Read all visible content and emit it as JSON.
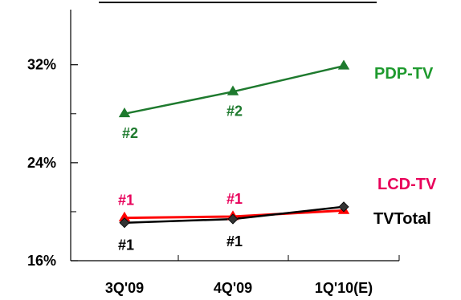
{
  "chart_data": {
    "type": "line",
    "categories": [
      "3Q'09",
      "4Q'09",
      "1Q'10(E)"
    ],
    "y_ticks": [
      "16%",
      "24%",
      "32%"
    ],
    "ylim": [
      16,
      36.5
    ],
    "series": [
      {
        "name": "PDP-TV",
        "values": [
          28.0,
          29.8,
          31.9
        ],
        "color": "#1e7a2e",
        "marker": "triangle",
        "ranks": [
          "#2",
          "#2",
          ""
        ]
      },
      {
        "name": "LCD-TV",
        "values": [
          19.5,
          19.6,
          20.1
        ],
        "color": "#ff0000",
        "marker": "triangle",
        "ranks": [
          "#1",
          "#1",
          ""
        ]
      },
      {
        "name": "TVTotal",
        "values": [
          19.1,
          19.4,
          20.4
        ],
        "color": "#000000",
        "marker": "diamond",
        "ranks": [
          "#1",
          "#1",
          ""
        ]
      }
    ],
    "rank_label_colors": {
      "PDP-TV": "#1e7a2e",
      "LCD-TV": "#e8005a",
      "TVTotal": "#000000"
    },
    "series_label_colors": {
      "PDP-TV": "#1e9a2e",
      "LCD-TV": "#e8005a",
      "TVTotal": "#000000"
    },
    "grid": false,
    "legend": "inline-right"
  }
}
